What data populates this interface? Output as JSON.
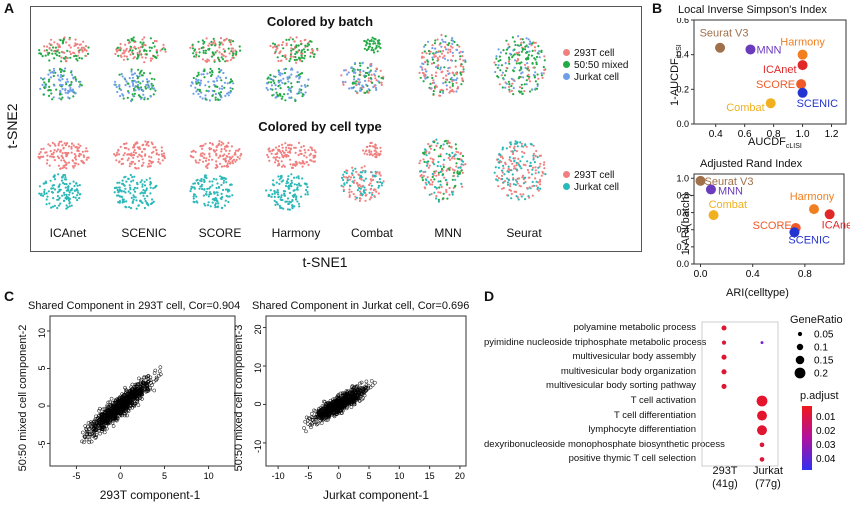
{
  "panels": {
    "A": {
      "letter": "A",
      "title_batch": "Colored by batch",
      "title_celltype": "Colored by cell type",
      "ylabel": "t-SNE2",
      "xlabel": "t-SNE1",
      "methods": [
        "ICAnet",
        "SCENIC",
        "SCORE",
        "Harmony",
        "Combat",
        "MNN",
        "Seurat"
      ],
      "legend_batch": [
        {
          "label": "293T cell",
          "color": "#f08080"
        },
        {
          "label": "50:50 mixed",
          "color": "#22aa44"
        },
        {
          "label": "Jurkat cell",
          "color": "#6f9fe8"
        }
      ],
      "legend_celltype": [
        {
          "label": "293T cell",
          "color": "#f08080"
        },
        {
          "label": "Jurkat cell",
          "color": "#2ab8b8"
        }
      ]
    },
    "B": {
      "letter": "B",
      "top": {
        "title": "Local Inverse Simpson's Index",
        "ylabel_main": "1-AUCDF",
        "ylabel_sub": "iLISI",
        "xlabel_main": "AUCDF",
        "xlabel_sub": "cLISI"
      },
      "bottom": {
        "title": "Adjusted Rand Index",
        "ylabel": "1-ARI(batch)",
        "xlabel": "ARI(celltype)"
      }
    },
    "C": {
      "letter": "C",
      "left": {
        "title": "Shared Component in 293T cell, Cor=0.904",
        "xlabel": "293T component-1",
        "ylabel": "50:50 mixed cell component-2"
      },
      "right": {
        "title": "Shared Component in Jurkat cell, Cor=0.696",
        "xlabel": "Jurkat component-1",
        "ylabel": "50:50 mixed cell component-3"
      }
    },
    "D": {
      "letter": "D",
      "size_legend_title": "GeneRatio",
      "color_legend_title": "p.adjust",
      "col1": {
        "name": "293T",
        "count": "(41g)"
      },
      "col2": {
        "name": "Jurkat",
        "count": "(77g)"
      }
    }
  },
  "chart_data": [
    {
      "type": "scatter",
      "title": "Local Inverse Simpson's Index",
      "xlabel": "AUCDF_cLISI",
      "ylabel": "1-AUCDF_iLISI",
      "xlim": [
        0.25,
        1.3
      ],
      "ylim": [
        0.0,
        0.6
      ],
      "xticks": [
        "0.4",
        "0.6",
        "0.8",
        "1.0",
        "1.2"
      ],
      "yticks": [
        "0.0",
        "0.2",
        "0.4",
        "0.6"
      ],
      "points": [
        {
          "name": "Seurat V3",
          "x": 0.43,
          "y": 0.44,
          "color": "#a0704a"
        },
        {
          "name": "MNN",
          "x": 0.64,
          "y": 0.43,
          "color": "#6a3bbd"
        },
        {
          "name": "Harmony",
          "x": 1.0,
          "y": 0.4,
          "color": "#f07f20"
        },
        {
          "name": "ICAnet",
          "x": 1.0,
          "y": 0.34,
          "color": "#e02828"
        },
        {
          "name": "SCORE",
          "x": 0.99,
          "y": 0.23,
          "color": "#f05a28"
        },
        {
          "name": "Combat",
          "x": 0.78,
          "y": 0.12,
          "color": "#f0b020"
        },
        {
          "name": "SCENIC",
          "x": 1.0,
          "y": 0.18,
          "color": "#2434d0"
        }
      ]
    },
    {
      "type": "scatter",
      "title": "Adjusted Rand Index",
      "xlabel": "ARI(celltype)",
      "ylabel": "1-ARI(batch)",
      "xlim": [
        -0.05,
        1.1
      ],
      "ylim": [
        0.0,
        1.05
      ],
      "xticks": [
        "0.0",
        "0.4",
        "0.8"
      ],
      "yticks": [
        "0.0",
        "0.2",
        "0.4",
        "0.6",
        "0.8",
        "1.0"
      ],
      "points": [
        {
          "name": "Seurat V3",
          "x": 0.0,
          "y": 0.97,
          "color": "#a0704a"
        },
        {
          "name": "MNN",
          "x": 0.08,
          "y": 0.87,
          "color": "#6a3bbd"
        },
        {
          "name": "Harmony",
          "x": 0.87,
          "y": 0.64,
          "color": "#f07f20"
        },
        {
          "name": "Combat",
          "x": 0.1,
          "y": 0.57,
          "color": "#f0b020"
        },
        {
          "name": "ICAnet",
          "x": 0.99,
          "y": 0.58,
          "color": "#e02828"
        },
        {
          "name": "SCORE",
          "x": 0.73,
          "y": 0.42,
          "color": "#f05a28"
        },
        {
          "name": "SCENIC",
          "x": 0.72,
          "y": 0.37,
          "color": "#2434d0"
        }
      ]
    },
    {
      "type": "scatter",
      "title": "Shared Component in 293T cell, Cor=0.904",
      "xlabel": "293T component-1",
      "ylabel": "50:50 mixed cell component-2",
      "xlim": [
        -8,
        13
      ],
      "ylim": [
        -8,
        12
      ],
      "xticks": [
        -5,
        0,
        5,
        10
      ],
      "yticks": [
        -5,
        0,
        5,
        10
      ],
      "correlation": 0.904
    },
    {
      "type": "scatter",
      "title": "Shared Component in Jurkat cell, Cor=0.696",
      "xlabel": "Jurkat component-1",
      "ylabel": "50:50 mixed cell component-3",
      "xlim": [
        -12,
        21
      ],
      "ylim": [
        -16,
        23
      ],
      "xticks": [
        -10,
        -5,
        0,
        5,
        10,
        15,
        20
      ],
      "yticks": [
        -10,
        0,
        10,
        20
      ],
      "correlation": 0.696
    },
    {
      "type": "scatter",
      "subtype": "dotplot",
      "terms": [
        "polyamine metabolic process",
        "pyimidine nucleoside triphosphate metabolic process",
        "multivesicular body assembly",
        "multivesicular body organization",
        "multivesicular body sorting pathway",
        "T cell activation",
        "T cell differentiation",
        "lymphocyte differentiation",
        "dexyribonucleoside monophosphate biosynthetic process",
        "positive thymic T cell selection"
      ],
      "columns": [
        "293T",
        "Jurkat"
      ],
      "dots": [
        {
          "term": 0,
          "col": 0,
          "gene_ratio": 0.07,
          "p_adjust": 0.002
        },
        {
          "term": 1,
          "col": 0,
          "gene_ratio": 0.05,
          "p_adjust": 0.003
        },
        {
          "term": 1,
          "col": 1,
          "gene_ratio": 0.02,
          "p_adjust": 0.04
        },
        {
          "term": 2,
          "col": 0,
          "gene_ratio": 0.07,
          "p_adjust": 0.002
        },
        {
          "term": 3,
          "col": 0,
          "gene_ratio": 0.07,
          "p_adjust": 0.002
        },
        {
          "term": 4,
          "col": 0,
          "gene_ratio": 0.07,
          "p_adjust": 0.002
        },
        {
          "term": 5,
          "col": 1,
          "gene_ratio": 0.2,
          "p_adjust": 0.001
        },
        {
          "term": 6,
          "col": 1,
          "gene_ratio": 0.18,
          "p_adjust": 0.001
        },
        {
          "term": 7,
          "col": 1,
          "gene_ratio": 0.18,
          "p_adjust": 0.002
        },
        {
          "term": 8,
          "col": 1,
          "gene_ratio": 0.06,
          "p_adjust": 0.004
        },
        {
          "term": 9,
          "col": 1,
          "gene_ratio": 0.06,
          "p_adjust": 0.004
        }
      ],
      "size_legend": [
        "0.05",
        "0.1",
        "0.15",
        "0.2"
      ],
      "color_legend": [
        "0.01",
        "0.02",
        "0.03",
        "0.04"
      ]
    }
  ]
}
